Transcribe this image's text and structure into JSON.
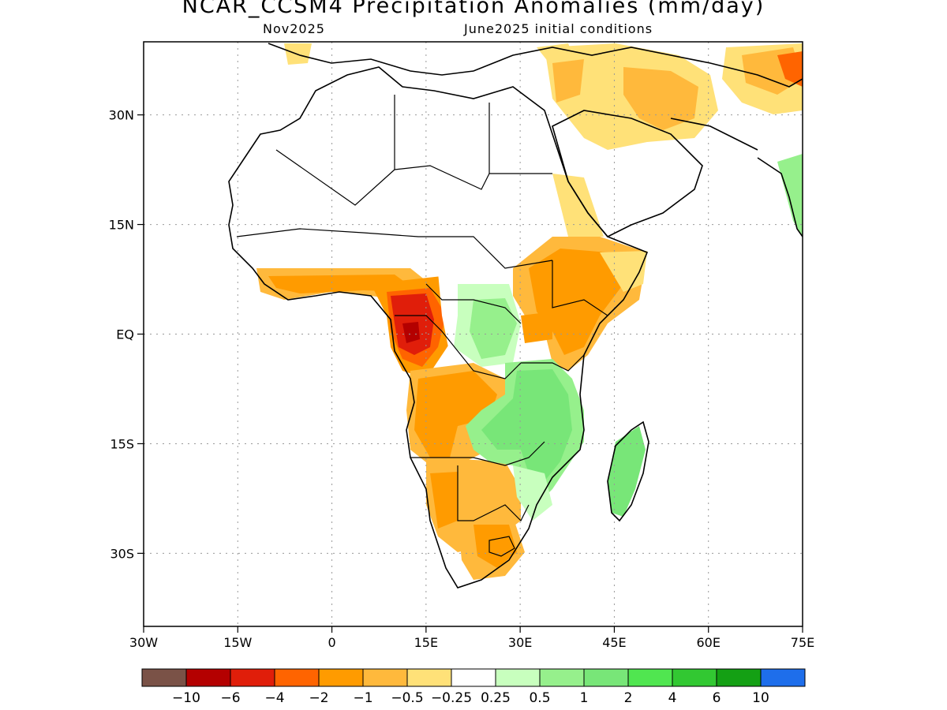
{
  "title": "NCAR_CCSM4 Precipitation Anomalies (mm/day)",
  "subtitle_left": "Nov2025",
  "subtitle_right": "June2025 initial conditions",
  "map": {
    "lon_range": [
      -30,
      75
    ],
    "lat_range": [
      -40,
      40
    ],
    "x_ticks": [
      "30W",
      "15W",
      "0",
      "15E",
      "30E",
      "45E",
      "60E",
      "75E"
    ],
    "y_ticks": [
      "30N",
      "15N",
      "EQ",
      "15S",
      "30S"
    ],
    "grid": true
  },
  "colorbar": {
    "colors": [
      "#7a5247",
      "#b40000",
      "#e01e0a",
      "#ff6400",
      "#ff9b00",
      "#ffb93c",
      "#ffe178",
      "#ffffff",
      "#c8ffbe",
      "#96f08c",
      "#78e678",
      "#50e650",
      "#32c832",
      "#14a014",
      "#1e6eeb"
    ],
    "labels": [
      "-10",
      "-6",
      "-4",
      "-2",
      "-1",
      "-0.5",
      "-0.25",
      "0.25",
      "0.5",
      "1",
      "2",
      "4",
      "6",
      "10"
    ]
  },
  "anomaly_regions": [
    {
      "name": "west-africa-coast-dry",
      "color": "#ff9b00"
    },
    {
      "name": "gulf-of-guinea-dry",
      "color": "#ff9b00"
    },
    {
      "name": "congo-core-very-dry",
      "color": "#e01e0a"
    },
    {
      "name": "angola-dry",
      "color": "#ff9b00"
    },
    {
      "name": "namibia-botswana-dry",
      "color": "#ffb93c"
    },
    {
      "name": "south-africa-dry",
      "color": "#ff9b00"
    },
    {
      "name": "east-africa-dry",
      "color": "#ff9b00"
    },
    {
      "name": "horn-of-africa-dry",
      "color": "#ffe178"
    },
    {
      "name": "central-africa-wet",
      "color": "#96f08c"
    },
    {
      "name": "southeast-africa-wet",
      "color": "#78e678"
    },
    {
      "name": "madagascar-wet",
      "color": "#78e678"
    },
    {
      "name": "middle-east-dry",
      "color": "#ffe178"
    },
    {
      "name": "iran-dry",
      "color": "#ffb93c"
    }
  ]
}
